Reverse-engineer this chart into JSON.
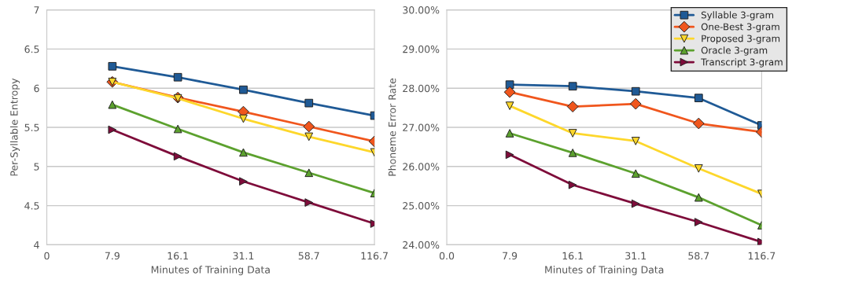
{
  "chart_data": [
    {
      "type": "line",
      "ylabel": "Per-Syllable Entropy",
      "xlabel": "Minutes of Training Data",
      "categories": [
        "0",
        "7.9",
        "16.1",
        "31.1",
        "58.7",
        "116.7"
      ],
      "ylim": [
        4,
        7
      ],
      "yticks": [
        4,
        4.5,
        5,
        5.5,
        6,
        6.5,
        7
      ],
      "grid": "y",
      "legend": false,
      "series": [
        {
          "color": "#1f5a96",
          "marker": "square",
          "values": [
            null,
            6.28,
            6.14,
            5.98,
            5.81,
            5.65
          ]
        },
        {
          "color": "#f0561d",
          "marker": "diamond",
          "values": [
            null,
            6.08,
            5.88,
            5.7,
            5.51,
            5.32
          ]
        },
        {
          "color": "#fdd72b",
          "marker": "triangle_down",
          "values": [
            null,
            6.08,
            5.87,
            5.61,
            5.38,
            5.18
          ]
        },
        {
          "color": "#5ca12e",
          "marker": "triangle",
          "values": [
            null,
            5.79,
            5.48,
            5.18,
            4.92,
            4.66
          ]
        },
        {
          "color": "#7e0c3a",
          "marker": "triangle_right",
          "values": [
            null,
            5.47,
            5.13,
            4.81,
            4.54,
            4.27
          ]
        }
      ]
    },
    {
      "type": "line",
      "ylabel": "Phoneme Error Rate",
      "xlabel": "Minutes of Training Data",
      "categories": [
        "0.0",
        "7.9",
        "16.1",
        "31.1",
        "58.7",
        "116.7"
      ],
      "ylim": [
        24,
        30
      ],
      "yticks": [
        {
          "value": 24,
          "label": "24.00%"
        },
        {
          "value": 25,
          "label": "25.00%"
        },
        {
          "value": 26,
          "label": "26.00%"
        },
        {
          "value": 27,
          "label": "27.00%"
        },
        {
          "value": 28,
          "label": "28.00%"
        },
        {
          "value": 29,
          "label": "29.00%"
        },
        {
          "value": 30,
          "label": "30.00%"
        }
      ],
      "grid": "y",
      "legend": "top right",
      "series": [
        {
          "name": "Syllable 3-gram",
          "color": "#1f5a96",
          "marker": "square",
          "values": [
            null,
            28.09,
            28.05,
            27.92,
            27.75,
            27.05
          ]
        },
        {
          "name": "One-Best 3-gram",
          "color": "#f0561d",
          "marker": "diamond",
          "values": [
            null,
            27.9,
            27.53,
            27.6,
            27.1,
            26.88
          ]
        },
        {
          "name": "Proposed 3-gram",
          "color": "#fdd72b",
          "marker": "triangle_down",
          "values": [
            null,
            27.55,
            26.85,
            26.65,
            25.95,
            25.3
          ]
        },
        {
          "name": "Oracle 3-gram",
          "color": "#5ca12e",
          "marker": "triangle",
          "values": [
            null,
            26.85,
            26.35,
            25.82,
            25.21,
            24.5
          ]
        },
        {
          "name": "Transcript 3-gram",
          "color": "#7e0c3a",
          "marker": "triangle_right",
          "values": [
            null,
            26.3,
            25.53,
            25.05,
            24.58,
            24.07
          ]
        }
      ]
    }
  ]
}
